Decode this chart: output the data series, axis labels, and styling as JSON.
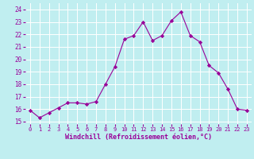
{
  "x": [
    0,
    1,
    2,
    3,
    4,
    5,
    6,
    7,
    8,
    9,
    10,
    11,
    12,
    13,
    14,
    15,
    16,
    17,
    18,
    19,
    20,
    21,
    22,
    23
  ],
  "y": [
    15.9,
    15.3,
    15.7,
    16.1,
    16.5,
    16.5,
    16.4,
    16.6,
    18.0,
    19.4,
    21.6,
    21.9,
    23.0,
    21.5,
    21.9,
    23.1,
    23.8,
    21.9,
    21.4,
    19.5,
    18.9,
    17.6,
    16.0,
    15.9
  ],
  "line_color": "#990099",
  "marker": "D",
  "marker_size": 2.2,
  "bg_color": "#c0eef0",
  "grid_color": "#ffffff",
  "xlabel": "Windchill (Refroidissement éolien,°C)",
  "ylabel_ticks": [
    15,
    16,
    17,
    18,
    19,
    20,
    21,
    22,
    23,
    24
  ],
  "xlim": [
    -0.5,
    23.5
  ],
  "ylim": [
    14.8,
    24.5
  ],
  "xlabel_color": "#990099",
  "tick_color": "#990099",
  "tick_fontsize": 5.0,
  "xlabel_fontsize": 6.0,
  "ytick_fontsize": 5.5
}
